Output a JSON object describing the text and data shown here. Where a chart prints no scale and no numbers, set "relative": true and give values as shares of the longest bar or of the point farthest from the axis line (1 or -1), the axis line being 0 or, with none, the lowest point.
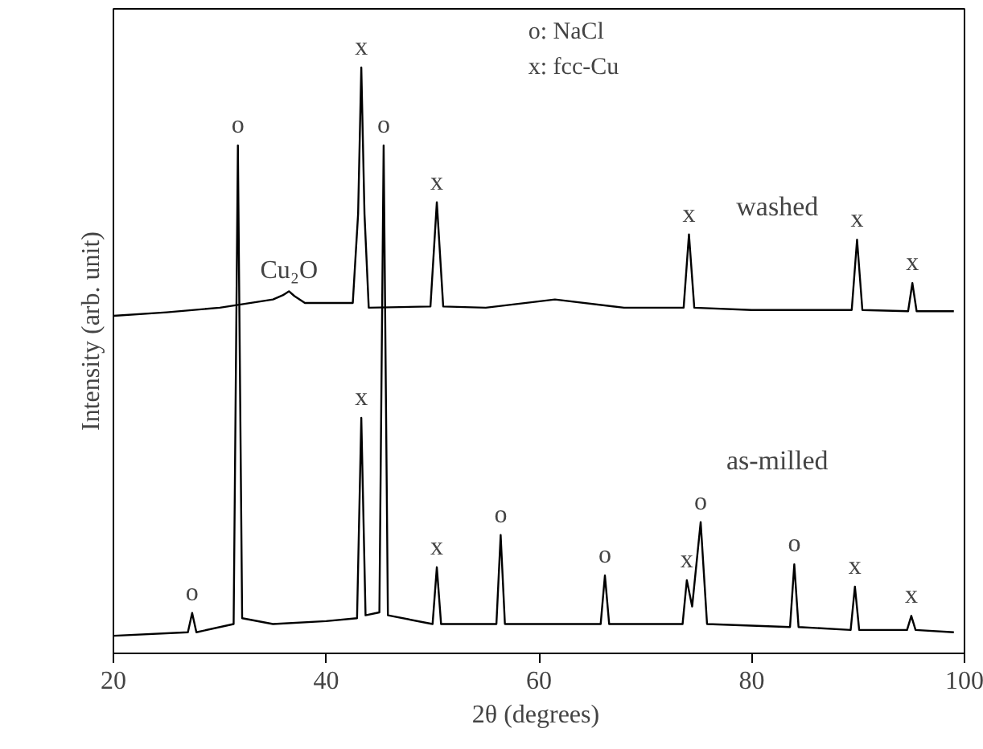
{
  "chart_data": {
    "type": "line",
    "relative": true,
    "xlabel": "2θ  (degrees)",
    "ylabel": "Intensity (arb. unit)",
    "xlim": [
      20,
      100
    ],
    "xticks": [
      20,
      40,
      60,
      80,
      100
    ],
    "grid": false,
    "legend": false,
    "marker": "none",
    "line_style": "solid",
    "series": [
      {
        "name": "washed",
        "color": "#000000",
        "x": [
          20,
          25,
          30,
          35,
          36.0,
          36.5,
          37.0,
          38,
          42.5,
          43.0,
          43.3,
          43.6,
          44,
          49.8,
          50.4,
          51.0,
          55,
          61.5,
          68,
          73.6,
          74.1,
          74.6,
          80,
          89.4,
          89.9,
          90.4,
          94.7,
          95.1,
          95.5,
          99
        ],
        "values": [
          0.576,
          0.582,
          0.59,
          0.604,
          0.612,
          0.618,
          0.61,
          0.598,
          0.598,
          0.75,
          1.0,
          0.75,
          0.59,
          0.592,
          0.77,
          0.592,
          0.59,
          0.604,
          0.59,
          0.59,
          0.715,
          0.59,
          0.586,
          0.586,
          0.706,
          0.586,
          0.584,
          0.632,
          0.584,
          0.584
        ]
      },
      {
        "name": "as-milled",
        "color": "#000000",
        "x": [
          20,
          27.0,
          27.4,
          27.8,
          31.3,
          31.7,
          32.1,
          35,
          40,
          42.9,
          43.3,
          43.7,
          45.0,
          45.4,
          45.8,
          50.0,
          50.4,
          50.8,
          56.0,
          56.4,
          56.8,
          62,
          65.8,
          66.2,
          66.6,
          73.5,
          73.9,
          74.4,
          75.2,
          75.8,
          83.6,
          84.0,
          84.4,
          89.3,
          89.7,
          90.1,
          94.6,
          95.0,
          95.4,
          99
        ],
        "values": [
          0.03,
          0.036,
          0.069,
          0.036,
          0.05,
          0.867,
          0.06,
          0.05,
          0.055,
          0.06,
          0.402,
          0.065,
          0.07,
          0.867,
          0.065,
          0.05,
          0.147,
          0.05,
          0.05,
          0.202,
          0.05,
          0.05,
          0.05,
          0.133,
          0.05,
          0.05,
          0.125,
          0.08,
          0.224,
          0.05,
          0.045,
          0.152,
          0.045,
          0.04,
          0.114,
          0.04,
          0.04,
          0.064,
          0.04,
          0.036
        ]
      }
    ],
    "annotations": [
      "o: NaCl",
      "x: fcc-Cu",
      {
        "text": "Cu₂O",
        "x": 36.5,
        "y": 0.618
      },
      {
        "text": "x",
        "x": 43.3,
        "y": 1.0
      },
      {
        "text": "x",
        "x": 50.4,
        "y": 0.77
      },
      {
        "text": "x",
        "x": 74.1,
        "y": 0.715
      },
      {
        "text": "x",
        "x": 89.9,
        "y": 0.706
      },
      {
        "text": "x",
        "x": 95.1,
        "y": 0.632
      },
      {
        "text": "o",
        "x": 27.4,
        "y": 0.069
      },
      {
        "text": "o",
        "x": 31.7,
        "y": 0.867
      },
      {
        "text": "x",
        "x": 43.3,
        "y": 0.402
      },
      {
        "text": "o",
        "x": 45.4,
        "y": 0.867
      },
      {
        "text": "x",
        "x": 50.4,
        "y": 0.147
      },
      {
        "text": "o",
        "x": 56.4,
        "y": 0.202
      },
      {
        "text": "o",
        "x": 66.2,
        "y": 0.133
      },
      {
        "text": "x",
        "x": 73.9,
        "y": 0.125
      },
      {
        "text": "o",
        "x": 75.2,
        "y": 0.224
      },
      {
        "text": "o",
        "x": 84.0,
        "y": 0.152
      },
      {
        "text": "x",
        "x": 89.7,
        "y": 0.114
      },
      {
        "text": "x",
        "x": 95.0,
        "y": 0.064
      }
    ]
  }
}
